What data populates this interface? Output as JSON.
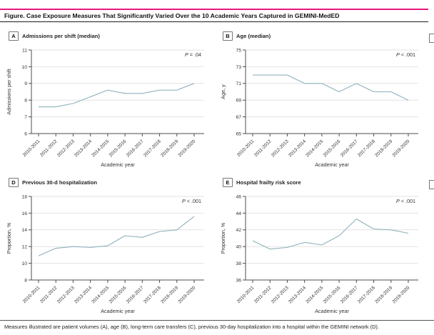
{
  "figure": {
    "title": "Figure. Case Exposure Measures That Significantly Varied Over the 10 Academic Years Captured in GEMINI-MedED",
    "caption": "Measures illustrated are patient volumes (A), age (B), long-term care transfers (C), previous 30-day hospitalization into a hospital within the GEMINI network (D)."
  },
  "colors": {
    "accent_rule": "#e8187d",
    "line": "#8fb1bd",
    "grid": "#e2e2e2",
    "axis": "#4d4d4d",
    "text": "#333333"
  },
  "chart_data": {
    "type": "line",
    "xlabel": "Academic year",
    "categories": [
      "2010-2011",
      "2011-2012",
      "2012-2013",
      "2013-2014",
      "2014-2015",
      "2015-2016",
      "2016-2017",
      "2017-2018",
      "2018-2019",
      "2019-2020"
    ],
    "panels": [
      {
        "panel_label": "A",
        "title": "Admissions per shift (median)",
        "p_value": "P = .04",
        "ylabel": "Admissions per shift",
        "ylim": [
          6,
          11
        ],
        "yticks": [
          6,
          7,
          8,
          9,
          10,
          11
        ],
        "values": [
          7.6,
          7.6,
          7.8,
          8.2,
          8.6,
          8.4,
          8.4,
          8.6,
          8.6,
          9.0
        ]
      },
      {
        "panel_label": "B",
        "title": "Age (median)",
        "p_value": "P < .001",
        "ylabel": "Age, y",
        "ylim": [
          65,
          75
        ],
        "yticks": [
          65,
          67,
          69,
          71,
          73,
          75
        ],
        "values": [
          72,
          72,
          72,
          71,
          71,
          70,
          71,
          70,
          70,
          69
        ]
      },
      {
        "panel_label": "D",
        "title": "Previous 30-d hospitalization",
        "p_value": "P < .001",
        "ylabel": "Proportion, %",
        "ylim": [
          8,
          18
        ],
        "yticks": [
          8,
          10,
          12,
          14,
          16,
          18
        ],
        "values": [
          10.9,
          11.8,
          12.0,
          11.9,
          12.1,
          13.3,
          13.1,
          13.8,
          14.0,
          15.6
        ]
      },
      {
        "panel_label": "E",
        "title": "Hospital frailty risk score",
        "p_value": "P < .001",
        "ylabel": "Proportion, %",
        "ylim": [
          36,
          46
        ],
        "yticks": [
          36,
          38,
          40,
          42,
          44,
          46
        ],
        "values": [
          40.7,
          39.7,
          39.9,
          40.5,
          40.2,
          41.3,
          43.3,
          42.1,
          42.0,
          41.6
        ]
      }
    ]
  }
}
